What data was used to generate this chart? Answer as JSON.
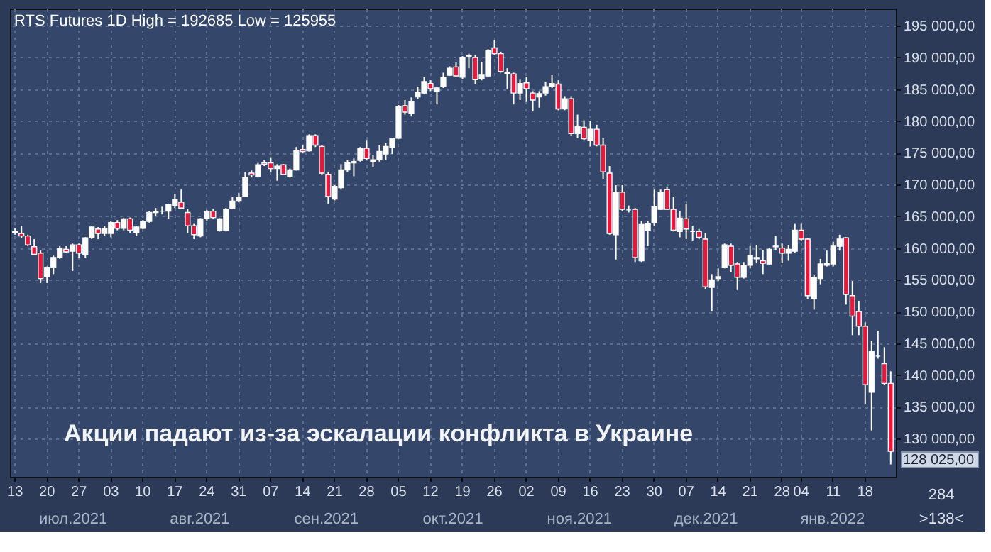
{
  "chart_data": {
    "type": "candlestick",
    "title": "RTS Futures 1D High = 192685 Low = 125955",
    "categories": [
      "13",
      null,
      null,
      null,
      null,
      "20",
      null,
      null,
      null,
      null,
      "27",
      null,
      null,
      null,
      null,
      "03",
      null,
      null,
      null,
      null,
      "10",
      null,
      null,
      null,
      null,
      "17",
      null,
      null,
      null,
      null,
      "24",
      null,
      null,
      null,
      null,
      "31",
      null,
      null,
      null,
      null,
      "07",
      null,
      null,
      null,
      null,
      "14",
      null,
      null,
      null,
      null,
      "21",
      null,
      null,
      null,
      null,
      "28",
      null,
      null,
      null,
      null,
      "05",
      null,
      null,
      null,
      null,
      "12",
      null,
      null,
      null,
      null,
      "19",
      null,
      null,
      null,
      null,
      "26",
      null,
      null,
      null,
      null,
      "02",
      null,
      null,
      null,
      null,
      "09",
      null,
      null,
      null,
      null,
      "16",
      null,
      null,
      null,
      null,
      "23",
      null,
      null,
      null,
      null,
      "30",
      null,
      null,
      null,
      null,
      "07",
      null,
      null,
      null,
      null,
      "14",
      null,
      null,
      null,
      null,
      "21",
      null,
      null,
      null,
      null,
      "28",
      null,
      null,
      "04",
      null,
      null,
      null,
      null,
      "11",
      null,
      null,
      null,
      null,
      "18",
      null,
      null,
      null,
      null
    ],
    "ohlc": [
      [
        162500,
        163100,
        162100,
        162600
      ],
      [
        162300,
        163500,
        161600,
        161900
      ],
      [
        161900,
        162100,
        160300,
        160500
      ],
      [
        160200,
        161400,
        158900,
        159000
      ],
      [
        159200,
        159600,
        154500,
        155200
      ],
      [
        155500,
        157100,
        154500,
        156900
      ],
      [
        156900,
        158800,
        155900,
        158500
      ],
      [
        158500,
        160300,
        158300,
        159900
      ],
      [
        159800,
        160300,
        159200,
        159400
      ],
      [
        159500,
        160700,
        156400,
        160500
      ],
      [
        160500,
        160700,
        158500,
        159200
      ],
      [
        159000,
        161700,
        158500,
        161600
      ],
      [
        161600,
        163500,
        161400,
        163300
      ],
      [
        163000,
        163300,
        161400,
        162300
      ],
      [
        162300,
        163500,
        161900,
        163100
      ],
      [
        162300,
        164200,
        161700,
        164000
      ],
      [
        164000,
        164400,
        162800,
        163100
      ],
      [
        163100,
        164700,
        162800,
        164600
      ],
      [
        164600,
        164800,
        162400,
        162800
      ],
      [
        162400,
        163500,
        161900,
        163300
      ],
      [
        163100,
        164400,
        163000,
        164200
      ],
      [
        164200,
        165800,
        164000,
        165600
      ],
      [
        165600,
        166300,
        165100,
        165800
      ],
      [
        165800,
        166500,
        165300,
        165800
      ],
      [
        165800,
        167000,
        164600,
        166800
      ],
      [
        166700,
        168500,
        166300,
        167700
      ],
      [
        167200,
        169200,
        166100,
        166300
      ],
      [
        165600,
        166100,
        162400,
        163500
      ],
      [
        163500,
        163800,
        161400,
        162100
      ],
      [
        161900,
        164700,
        161700,
        164600
      ],
      [
        164600,
        166000,
        164200,
        165700
      ],
      [
        165800,
        166100,
        164600,
        164800
      ],
      [
        162800,
        164700,
        162600,
        164600
      ],
      [
        162800,
        166300,
        162600,
        166100
      ],
      [
        166300,
        168100,
        166100,
        167400
      ],
      [
        167500,
        168700,
        167200,
        168000
      ],
      [
        168100,
        172000,
        168000,
        171100
      ],
      [
        171800,
        172200,
        171100,
        171500
      ],
      [
        171300,
        173400,
        171100,
        173100
      ],
      [
        173400,
        173900,
        172900,
        173200
      ],
      [
        173400,
        174300,
        172000,
        172500
      ],
      [
        172500,
        173200,
        170600,
        172900
      ],
      [
        173100,
        173200,
        171500,
        171600
      ],
      [
        171200,
        172500,
        171100,
        172300
      ],
      [
        172300,
        175900,
        172200,
        175300
      ],
      [
        175500,
        176200,
        175000,
        175200
      ],
      [
        175300,
        177900,
        175200,
        177700
      ],
      [
        177700,
        177900,
        175900,
        176200
      ],
      [
        176000,
        176200,
        171500,
        171800
      ],
      [
        171600,
        172000,
        167000,
        168100
      ],
      [
        167700,
        169900,
        167500,
        169700
      ],
      [
        169500,
        173200,
        169200,
        172300
      ],
      [
        172300,
        173900,
        172000,
        173500
      ],
      [
        173400,
        174100,
        171300,
        173600
      ],
      [
        173800,
        175900,
        173600,
        175700
      ],
      [
        175700,
        176900,
        173900,
        174100
      ],
      [
        173600,
        174600,
        172700,
        173900
      ],
      [
        173900,
        176200,
        173600,
        175200
      ],
      [
        174800,
        176500,
        173800,
        176000
      ],
      [
        175900,
        177300,
        174800,
        177200
      ],
      [
        177300,
        182500,
        177200,
        182300
      ],
      [
        182400,
        183300,
        181000,
        181400
      ],
      [
        181200,
        183700,
        180700,
        183000
      ],
      [
        183800,
        185400,
        183500,
        184500
      ],
      [
        184400,
        186900,
        184200,
        186200
      ],
      [
        185900,
        186400,
        184700,
        185100
      ],
      [
        184700,
        185400,
        182600,
        185200
      ],
      [
        185400,
        187600,
        185200,
        186900
      ],
      [
        187200,
        188600,
        187100,
        188300
      ],
      [
        188500,
        189300,
        186900,
        187100
      ],
      [
        186900,
        190200,
        186600,
        190000
      ],
      [
        190200,
        190600,
        188300,
        190300
      ],
      [
        190000,
        190400,
        185800,
        186500
      ],
      [
        186600,
        189300,
        186400,
        187200
      ],
      [
        187100,
        191300,
        186900,
        191100
      ],
      [
        191500,
        192685,
        190400,
        190600
      ],
      [
        190600,
        190900,
        187600,
        187800
      ],
      [
        187500,
        188300,
        185100,
        187600
      ],
      [
        187400,
        187600,
        182600,
        184400
      ],
      [
        184400,
        186500,
        183300,
        185900
      ],
      [
        186000,
        186900,
        183000,
        185100
      ],
      [
        184400,
        184700,
        181500,
        183300
      ],
      [
        183800,
        184700,
        182100,
        184300
      ],
      [
        184400,
        186200,
        184000,
        185400
      ],
      [
        185400,
        187200,
        185200,
        185900
      ],
      [
        185800,
        186400,
        181700,
        181900
      ],
      [
        181900,
        183800,
        181700,
        183500
      ],
      [
        183500,
        183800,
        177700,
        178000
      ],
      [
        178000,
        181000,
        177300,
        179200
      ],
      [
        179000,
        180100,
        176900,
        177200
      ],
      [
        176900,
        180000,
        176000,
        178700
      ],
      [
        178700,
        179400,
        176000,
        176200
      ],
      [
        176200,
        177300,
        170900,
        172000
      ],
      [
        171800,
        172900,
        162100,
        162300
      ],
      [
        162100,
        169900,
        158200,
        168800
      ],
      [
        168800,
        169900,
        165800,
        166100
      ],
      [
        166000,
        166700,
        165600,
        166000
      ],
      [
        166100,
        166300,
        157800,
        158500
      ],
      [
        158000,
        164200,
        157800,
        163700
      ],
      [
        162800,
        164200,
        160300,
        163800
      ],
      [
        164000,
        169200,
        163500,
        166500
      ],
      [
        166100,
        169200,
        166000,
        168800
      ],
      [
        169200,
        169700,
        166000,
        166100
      ],
      [
        166100,
        168100,
        162600,
        162800
      ],
      [
        162600,
        165800,
        161700,
        164700
      ],
      [
        164600,
        167000,
        161400,
        163000
      ],
      [
        162600,
        163500,
        161200,
        162600
      ],
      [
        162600,
        163000,
        161400,
        161700
      ],
      [
        161400,
        162400,
        153600,
        153900
      ],
      [
        153800,
        155900,
        150000,
        155000
      ],
      [
        155200,
        156800,
        154800,
        155500
      ],
      [
        156900,
        160700,
        156800,
        160500
      ],
      [
        160300,
        160700,
        156200,
        157300
      ],
      [
        157500,
        157800,
        153400,
        155400
      ],
      [
        155400,
        157800,
        155200,
        157300
      ],
      [
        157300,
        160300,
        156800,
        158800
      ],
      [
        158300,
        160500,
        157600,
        158500
      ],
      [
        158000,
        159700,
        155900,
        157600
      ],
      [
        157500,
        160000,
        157300,
        159800
      ],
      [
        160200,
        161900,
        159700,
        160300
      ],
      [
        160000,
        160700,
        157600,
        159200
      ],
      [
        159200,
        160500,
        158000,
        159800
      ],
      [
        159500,
        163800,
        159200,
        162800
      ],
      [
        162800,
        163800,
        161200,
        161400
      ],
      [
        161400,
        161600,
        152000,
        152500
      ],
      [
        152000,
        155700,
        150300,
        155400
      ],
      [
        155200,
        158300,
        154300,
        157500
      ],
      [
        157300,
        159600,
        157100,
        157600
      ],
      [
        157500,
        161000,
        157100,
        160300
      ],
      [
        160300,
        162100,
        159600,
        161400
      ],
      [
        161600,
        161700,
        151100,
        152700
      ],
      [
        152500,
        154800,
        146300,
        149300
      ],
      [
        150000,
        151700,
        146300,
        147700
      ],
      [
        147700,
        148300,
        135500,
        138500
      ],
      [
        137300,
        145400,
        131300,
        143700
      ],
      [
        143000,
        146900,
        142600,
        143000
      ],
      [
        141800,
        144400,
        138400,
        138700
      ],
      [
        138700,
        140600,
        125955,
        128025
      ]
    ],
    "colors": [
      "#ffffff",
      "#e8173c",
      "#e8173c",
      "#e8173c",
      "#e8173c",
      "#ffffff",
      "#ffffff",
      "#ffffff",
      "#e8173c",
      "#ffffff",
      "#e8173c",
      "#ffffff",
      "#ffffff",
      "#e8173c",
      "#ffffff",
      "#ffffff",
      "#e8173c",
      "#ffffff",
      "#e8173c",
      "#ffffff",
      "#ffffff",
      "#ffffff",
      "#ffffff",
      "#ffffff",
      "#ffffff",
      "#ffffff",
      "#e8173c",
      "#e8173c",
      "#e8173c",
      "#ffffff",
      "#ffffff",
      "#e8173c",
      "#ffffff",
      "#ffffff",
      "#ffffff",
      "#ffffff",
      "#ffffff",
      "#e8173c",
      "#ffffff",
      "#e8173c",
      "#e8173c",
      "#ffffff",
      "#e8173c",
      "#ffffff",
      "#ffffff",
      "#e8173c",
      "#ffffff",
      "#e8173c",
      "#e8173c",
      "#e8173c",
      "#ffffff",
      "#ffffff",
      "#ffffff",
      "#ffffff",
      "#ffffff",
      "#e8173c",
      "#ffffff",
      "#ffffff",
      "#ffffff",
      "#ffffff",
      "#ffffff",
      "#e8173c",
      "#ffffff",
      "#ffffff",
      "#ffffff",
      "#e8173c",
      "#ffffff",
      "#ffffff",
      "#ffffff",
      "#e8173c",
      "#ffffff",
      "#ffffff",
      "#e8173c",
      "#ffffff",
      "#ffffff",
      "#e8173c",
      "#e8173c",
      "#ffffff",
      "#e8173c",
      "#ffffff",
      "#e8173c",
      "#e8173c",
      "#ffffff",
      "#ffffff",
      "#ffffff",
      "#e8173c",
      "#ffffff",
      "#e8173c",
      "#ffffff",
      "#e8173c",
      "#ffffff",
      "#e8173c",
      "#e8173c",
      "#e8173c",
      "#ffffff",
      "#e8173c",
      "#ffffff",
      "#e8173c",
      "#ffffff",
      "#ffffff",
      "#ffffff",
      "#ffffff",
      "#e8173c",
      "#e8173c",
      "#ffffff",
      "#e8173c",
      "#ffffff",
      "#e8173c",
      "#e8173c",
      "#ffffff",
      "#ffffff",
      "#ffffff",
      "#e8173c",
      "#e8173c",
      "#ffffff",
      "#ffffff",
      "#ffffff",
      "#e8173c",
      "#ffffff",
      "#ffffff",
      "#e8173c",
      "#ffffff",
      "#ffffff",
      "#e8173c",
      "#e8173c",
      "#ffffff",
      "#ffffff",
      "#ffffff",
      "#ffffff",
      "#ffffff",
      "#e8173c",
      "#e8173c",
      "#e8173c",
      "#e8173c",
      "#ffffff",
      "#ffffff",
      "#e8173c",
      "#e8173c"
    ],
    "ylim": [
      124000,
      197700
    ],
    "yticks": [
      {
        "value": 130000,
        "label": "130 000,00"
      },
      {
        "value": 135000,
        "label": "135 000,00"
      },
      {
        "value": 140000,
        "label": "140 000,00"
      },
      {
        "value": 145000,
        "label": "145 000,00"
      },
      {
        "value": 150000,
        "label": "150 000,00"
      },
      {
        "value": 155000,
        "label": "155 000,00"
      },
      {
        "value": 160000,
        "label": "160 000,00"
      },
      {
        "value": 165000,
        "label": "165 000,00"
      },
      {
        "value": 170000,
        "label": "170 000,00"
      },
      {
        "value": 175000,
        "label": "175 000,00"
      },
      {
        "value": 180000,
        "label": "180 000,00"
      },
      {
        "value": 185000,
        "label": "185 000,00"
      },
      {
        "value": 190000,
        "label": "190 000,00"
      },
      {
        "value": 195000,
        "label": "195 000,00"
      }
    ],
    "grid": true,
    "annotations": [
      "Акции падают из-за эскалации конфликта в Украине",
      "июл.2021",
      "авг.2021",
      "сен.2021",
      "окт.2021",
      "ноя.2021",
      "дек.2021",
      "янв.2022",
      "284",
      ">138<",
      "128 025,00"
    ]
  }
}
